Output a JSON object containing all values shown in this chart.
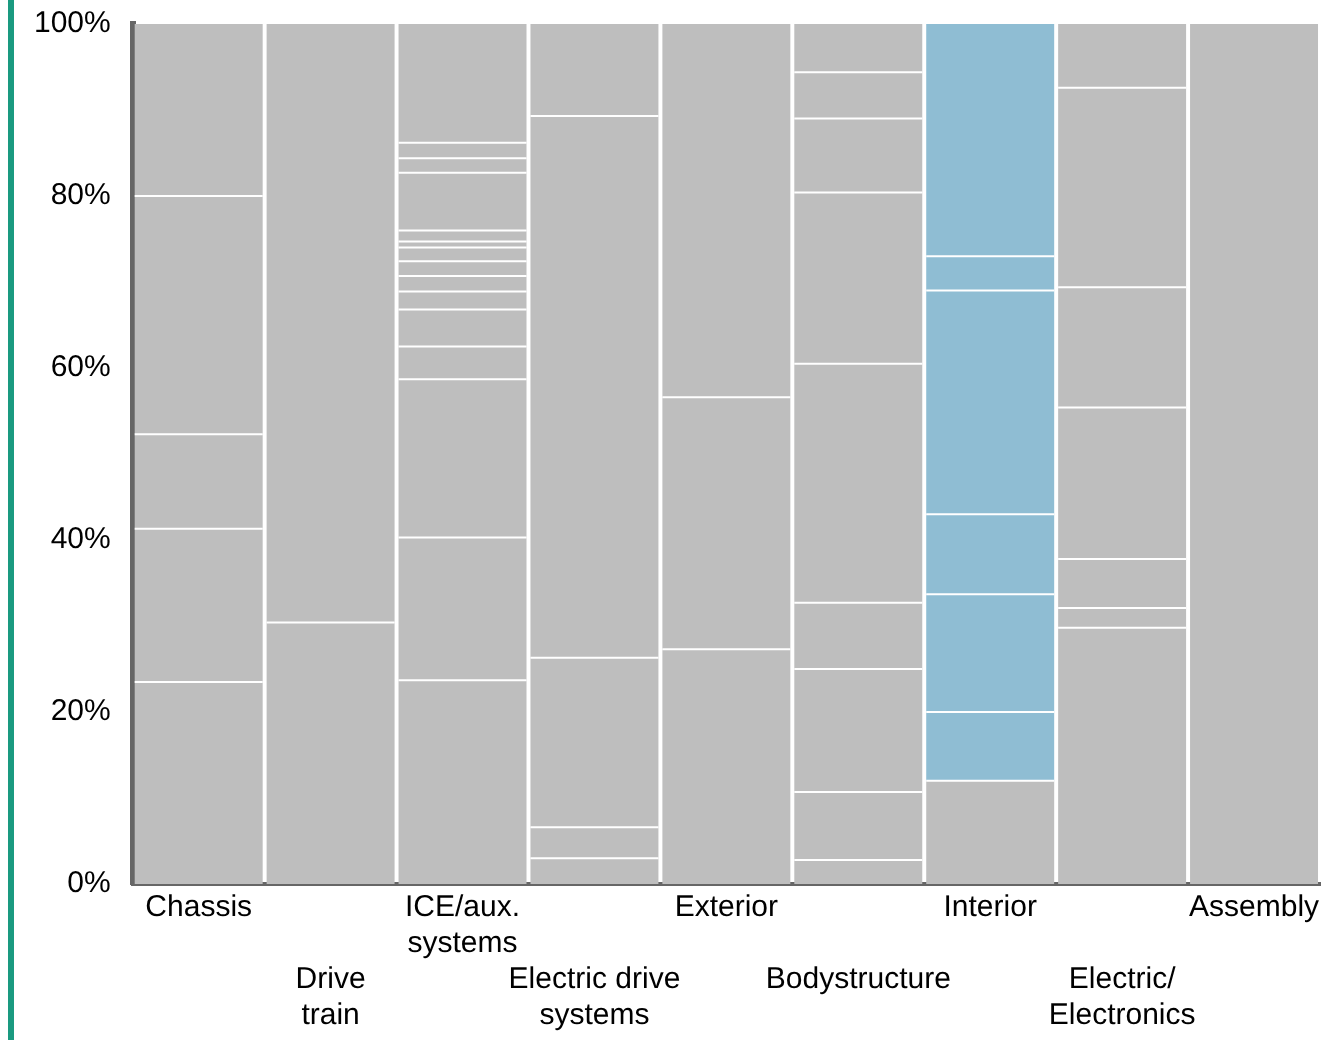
{
  "chart_data": {
    "type": "bar",
    "stacked": true,
    "grid": false,
    "legend": false,
    "categories": [
      "Chassis",
      "Drive train",
      "ICE/aux. systems",
      "Electric drive systems",
      "Exterior",
      "Bodystructure",
      "Interior",
      "Electric/Electronics",
      "Assembly"
    ],
    "ylim": [
      0,
      100
    ],
    "yticks": [
      {
        "value": 0,
        "label": "0%"
      },
      {
        "value": 20,
        "label": "20%"
      },
      {
        "value": 40,
        "label": "40%"
      },
      {
        "value": 60,
        "label": "60%"
      },
      {
        "value": 80,
        "label": "80%"
      },
      {
        "value": 100,
        "label": "100%"
      }
    ],
    "series": [
      {
        "colors": [
          "#bebebe",
          "#bebebe",
          "#bebebe",
          "#bebebe",
          "#bebebe",
          "#bebebe",
          "#bebebe",
          "#bebebe",
          "#bebebe"
        ],
        "values": [
          23.5,
          30.4,
          23.7,
          3,
          27.3,
          2.8,
          12,
          29.8,
          100
        ]
      },
      {
        "colors": [
          "#bebebe",
          "#bebebe",
          "#bebebe",
          "#bebebe",
          "#bebebe",
          "#bebebe",
          "#8fbdd3",
          "#bebebe",
          "#bebebe"
        ],
        "values": [
          17.8,
          69.6,
          16.6,
          3.6,
          29.3,
          7.9,
          8,
          2.3,
          null
        ]
      },
      {
        "colors": [
          "#bebebe",
          "#bebebe",
          "#bebebe",
          "#bebebe",
          "#bebebe",
          "#bebebe",
          "#8fbdd3",
          "#bebebe",
          "#bebebe"
        ],
        "values": [
          11,
          null,
          18.4,
          19.7,
          43.4,
          14.3,
          13.7,
          5.7,
          null
        ]
      },
      {
        "colors": [
          "#bebebe",
          "#bebebe",
          "#bebebe",
          "#bebebe",
          "#bebebe",
          "#bebebe",
          "#8fbdd3",
          "#bebebe",
          "#bebebe"
        ],
        "values": [
          27.7,
          null,
          3.8,
          63,
          null,
          7.7,
          9.3,
          17.6,
          null
        ]
      },
      {
        "colors": [
          "#bebebe",
          "#bebebe",
          "#bebebe",
          "#bebebe",
          "#bebebe",
          "#bebebe",
          "#8fbdd3",
          "#bebebe",
          "#bebebe"
        ],
        "values": [
          20,
          null,
          4.3,
          10.7,
          null,
          27.8,
          26,
          14,
          null
        ]
      },
      {
        "colors": [
          "#bebebe",
          "#bebebe",
          "#bebebe",
          "#bebebe",
          "#bebebe",
          "#bebebe",
          "#8fbdd3",
          "#bebebe",
          "#bebebe"
        ],
        "values": [
          null,
          null,
          2.1,
          null,
          null,
          19.9,
          4,
          23.2,
          null
        ]
      },
      {
        "colors": [
          "#bebebe",
          "#bebebe",
          "#bebebe",
          "#bebebe",
          "#bebebe",
          "#bebebe",
          "#8fbdd3",
          "#bebebe",
          "#bebebe"
        ],
        "values": [
          null,
          null,
          1.8,
          null,
          null,
          8.6,
          27,
          7.4,
          null
        ]
      },
      {
        "colors": [
          "#bebebe",
          "#bebebe",
          "#bebebe",
          "#bebebe",
          "#bebebe",
          "#bebebe",
          "#bebebe",
          "#bebebe",
          "#bebebe"
        ],
        "values": [
          null,
          null,
          1.7,
          null,
          null,
          5.4,
          null,
          null,
          null
        ]
      },
      {
        "colors": [
          "#bebebe",
          "#bebebe",
          "#bebebe",
          "#bebebe",
          "#bebebe",
          "#bebebe",
          "#bebebe",
          "#bebebe",
          "#bebebe"
        ],
        "values": [
          null,
          null,
          1.6,
          null,
          null,
          5.6,
          null,
          null,
          null
        ]
      },
      {
        "colors": [
          "#bebebe",
          "#bebebe",
          "#bebebe",
          "#bebebe",
          "#bebebe",
          "#bebebe",
          "#bebebe",
          "#bebebe",
          "#bebebe"
        ],
        "values": [
          null,
          null,
          0.7,
          null,
          null,
          null,
          null,
          null,
          null
        ]
      },
      {
        "colors": [
          "#bebebe",
          "#bebebe",
          "#bebebe",
          "#bebebe",
          "#bebebe",
          "#bebebe",
          "#bebebe",
          "#bebebe",
          "#bebebe"
        ],
        "values": [
          null,
          null,
          1.3,
          null,
          null,
          null,
          null,
          null,
          null
        ]
      },
      {
        "colors": [
          "#bebebe",
          "#bebebe",
          "#bebebe",
          "#bebebe",
          "#bebebe",
          "#bebebe",
          "#bebebe",
          "#bebebe",
          "#bebebe"
        ],
        "values": [
          null,
          null,
          6.7,
          null,
          null,
          null,
          null,
          null,
          null
        ]
      },
      {
        "colors": [
          "#bebebe",
          "#bebebe",
          "#bebebe",
          "#bebebe",
          "#bebebe",
          "#bebebe",
          "#bebebe",
          "#bebebe",
          "#bebebe"
        ],
        "values": [
          null,
          null,
          1.7,
          null,
          null,
          null,
          null,
          null,
          null
        ]
      },
      {
        "colors": [
          "#bebebe",
          "#bebebe",
          "#bebebe",
          "#bebebe",
          "#bebebe",
          "#bebebe",
          "#bebebe",
          "#bebebe",
          "#bebebe"
        ],
        "values": [
          null,
          null,
          1.8,
          null,
          null,
          null,
          null,
          null,
          null
        ]
      },
      {
        "colors": [
          "#bebebe",
          "#bebebe",
          "#bebebe",
          "#bebebe",
          "#bebebe",
          "#bebebe",
          "#bebebe",
          "#bebebe",
          "#bebebe"
        ],
        "values": [
          null,
          null,
          13.8,
          null,
          null,
          null,
          null,
          null,
          null
        ]
      }
    ]
  }
}
